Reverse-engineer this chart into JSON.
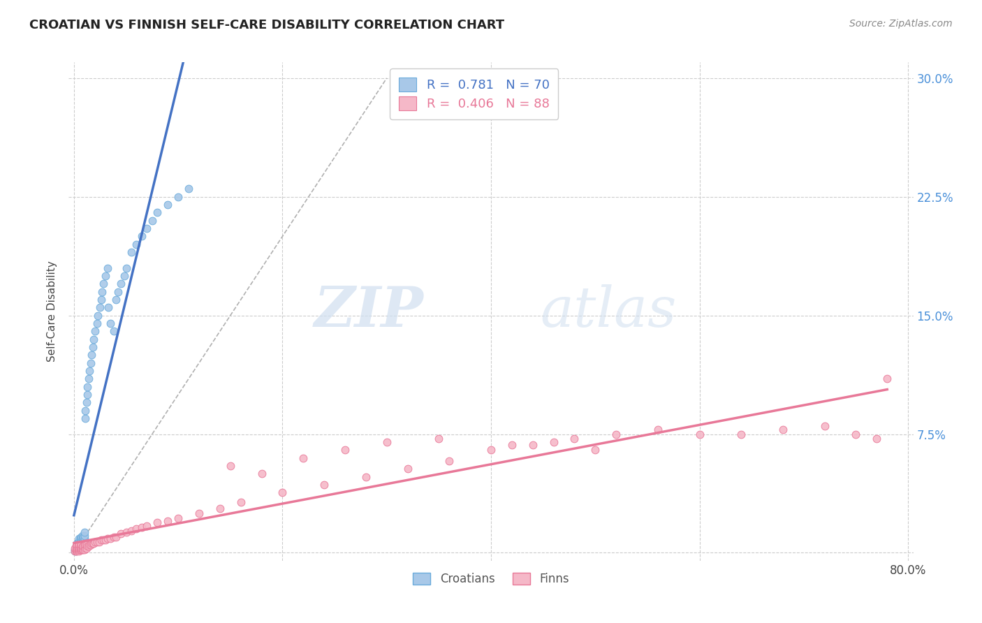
{
  "title": "CROATIAN VS FINNISH SELF-CARE DISABILITY CORRELATION CHART",
  "source": "Source: ZipAtlas.com",
  "ylabel": "Self-Care Disability",
  "xlim": [
    0.0,
    0.8
  ],
  "ylim": [
    0.0,
    0.3
  ],
  "x_ticks": [
    0.0,
    0.2,
    0.4,
    0.6,
    0.8
  ],
  "y_ticks": [
    0.0,
    0.075,
    0.15,
    0.225,
    0.3
  ],
  "y_tick_labels": [
    "",
    "7.5%",
    "15.0%",
    "22.5%",
    "30.0%"
  ],
  "croatian_color": "#a8c8e8",
  "croatian_edge": "#6aabdb",
  "finnish_color": "#f5b8c8",
  "finnish_edge": "#e87898",
  "line_croatian": "#4472c4",
  "line_finnish": "#e87898",
  "diagonal_color": "#b0b0b0",
  "watermark_zip": "ZIP",
  "watermark_atlas": "atlas",
  "legend_r_croatian": "0.781",
  "legend_n_croatian": "70",
  "legend_r_finnish": "0.406",
  "legend_n_finnish": "88",
  "croatian_label": "Croatians",
  "finnish_label": "Finns",
  "background_color": "#ffffff",
  "grid_color": "#cccccc",
  "croatian_points_x": [
    0.001,
    0.001,
    0.002,
    0.002,
    0.002,
    0.002,
    0.003,
    0.003,
    0.003,
    0.003,
    0.003,
    0.004,
    0.004,
    0.004,
    0.004,
    0.005,
    0.005,
    0.005,
    0.005,
    0.006,
    0.006,
    0.006,
    0.007,
    0.007,
    0.007,
    0.008,
    0.008,
    0.008,
    0.009,
    0.009,
    0.01,
    0.01,
    0.01,
    0.011,
    0.011,
    0.012,
    0.013,
    0.013,
    0.014,
    0.015,
    0.016,
    0.017,
    0.018,
    0.019,
    0.02,
    0.022,
    0.023,
    0.025,
    0.026,
    0.027,
    0.028,
    0.03,
    0.032,
    0.033,
    0.035,
    0.038,
    0.04,
    0.042,
    0.045,
    0.048,
    0.05,
    0.055,
    0.06,
    0.065,
    0.07,
    0.075,
    0.08,
    0.09,
    0.1,
    0.11
  ],
  "croatian_points_y": [
    0.001,
    0.002,
    0.001,
    0.002,
    0.003,
    0.004,
    0.002,
    0.003,
    0.004,
    0.005,
    0.006,
    0.003,
    0.004,
    0.005,
    0.007,
    0.004,
    0.006,
    0.007,
    0.009,
    0.005,
    0.007,
    0.009,
    0.006,
    0.008,
    0.01,
    0.007,
    0.009,
    0.011,
    0.008,
    0.01,
    0.009,
    0.011,
    0.013,
    0.085,
    0.09,
    0.095,
    0.1,
    0.105,
    0.11,
    0.115,
    0.12,
    0.125,
    0.13,
    0.135,
    0.14,
    0.145,
    0.15,
    0.155,
    0.16,
    0.165,
    0.17,
    0.175,
    0.18,
    0.155,
    0.145,
    0.14,
    0.16,
    0.165,
    0.17,
    0.175,
    0.18,
    0.19,
    0.195,
    0.2,
    0.205,
    0.21,
    0.215,
    0.22,
    0.225,
    0.23
  ],
  "finnish_points_x": [
    0.001,
    0.001,
    0.002,
    0.002,
    0.002,
    0.003,
    0.003,
    0.003,
    0.003,
    0.004,
    0.004,
    0.004,
    0.005,
    0.005,
    0.005,
    0.005,
    0.006,
    0.006,
    0.006,
    0.007,
    0.007,
    0.007,
    0.008,
    0.008,
    0.008,
    0.009,
    0.009,
    0.01,
    0.01,
    0.011,
    0.011,
    0.012,
    0.012,
    0.013,
    0.014,
    0.015,
    0.016,
    0.017,
    0.018,
    0.019,
    0.02,
    0.022,
    0.024,
    0.026,
    0.028,
    0.03,
    0.032,
    0.035,
    0.038,
    0.04,
    0.045,
    0.05,
    0.055,
    0.06,
    0.065,
    0.07,
    0.08,
    0.09,
    0.1,
    0.12,
    0.14,
    0.16,
    0.2,
    0.24,
    0.28,
    0.32,
    0.36,
    0.4,
    0.44,
    0.48,
    0.52,
    0.56,
    0.6,
    0.64,
    0.68,
    0.72,
    0.75,
    0.77,
    0.15,
    0.18,
    0.22,
    0.26,
    0.3,
    0.35,
    0.42,
    0.46,
    0.5,
    0.78
  ],
  "finnish_points_y": [
    0.001,
    0.003,
    0.001,
    0.002,
    0.004,
    0.001,
    0.002,
    0.003,
    0.005,
    0.002,
    0.003,
    0.004,
    0.001,
    0.002,
    0.003,
    0.005,
    0.002,
    0.003,
    0.004,
    0.002,
    0.003,
    0.005,
    0.002,
    0.003,
    0.004,
    0.002,
    0.004,
    0.002,
    0.004,
    0.003,
    0.005,
    0.003,
    0.005,
    0.004,
    0.004,
    0.005,
    0.005,
    0.006,
    0.006,
    0.006,
    0.007,
    0.007,
    0.007,
    0.008,
    0.008,
    0.008,
    0.009,
    0.009,
    0.01,
    0.01,
    0.012,
    0.013,
    0.014,
    0.015,
    0.016,
    0.017,
    0.019,
    0.02,
    0.022,
    0.025,
    0.028,
    0.032,
    0.038,
    0.043,
    0.048,
    0.053,
    0.058,
    0.065,
    0.068,
    0.072,
    0.075,
    0.078,
    0.075,
    0.075,
    0.078,
    0.08,
    0.075,
    0.072,
    0.055,
    0.05,
    0.06,
    0.065,
    0.07,
    0.072,
    0.068,
    0.07,
    0.065,
    0.11
  ]
}
